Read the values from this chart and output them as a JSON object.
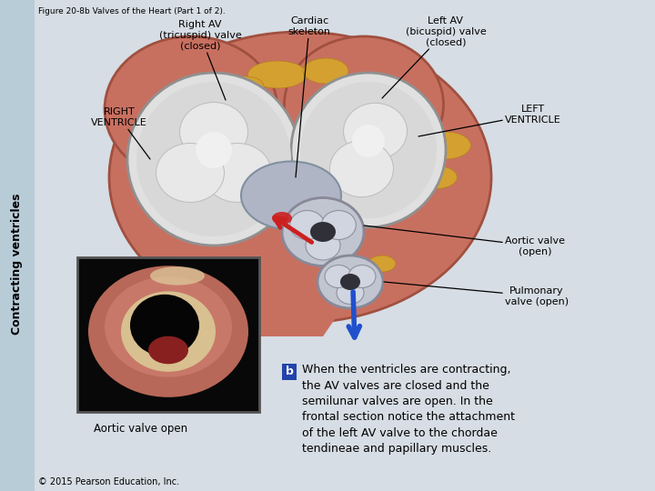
{
  "figure_title": "Figure 20-8b Valves of the Heart (Part 1 of 2).",
  "copyright": "© 2015 Pearson Education, Inc.",
  "bg_color": "#d6dde4",
  "sidebar_color": "#b8ccd8",
  "title_fontsize": 6.5,
  "copyright_fontsize": 7,
  "vertical_label": "Contracting ventricles",
  "labels": {
    "right_av": "Right AV\n(tricuspid) valve\n(closed)",
    "cardiac_skeleton": "Cardiac\nskeleton",
    "left_av": "Left AV\n(bicuspid) valve\n(closed)",
    "right_ventricle": "RIGHT\nVENTRICLE",
    "left_ventricle": "LEFT\nVENTRICLE",
    "aortic_valve": "Aortic valve\n(open)",
    "pulmonary_valve": "Pulmonary\nvalve (open)",
    "aortic_valve_open_caption": "Aortic valve open"
  },
  "part_b_label": "b",
  "part_b_text": "When the ventricles are contracting,\nthe AV valves are closed and the\nsemilunar valves are open. In the\nfrontal section notice the attachment\nof the left AV valve to the chordae\ntendineae and papillary muscles.",
  "annotation_fontsize": 8,
  "heart_color": "#c87060",
  "heart_edge_color": "#a05040",
  "fat_color": "#d4a030",
  "fat_edge": "#b08020",
  "rv_valve_color": "#c8c8c8",
  "lv_valve_color": "#d0d0d0",
  "cusp_color": "#b0b0b8",
  "skel_color": "#9898a8",
  "aortic_color": "#a8aab8",
  "red_arrow_color": "#cc2020",
  "blue_arrow_color": "#2050cc",
  "inset_bg": "#111111",
  "inset_tissue": "#c07878",
  "inset_hole": "#080808",
  "b_box_color": "#2244aa"
}
